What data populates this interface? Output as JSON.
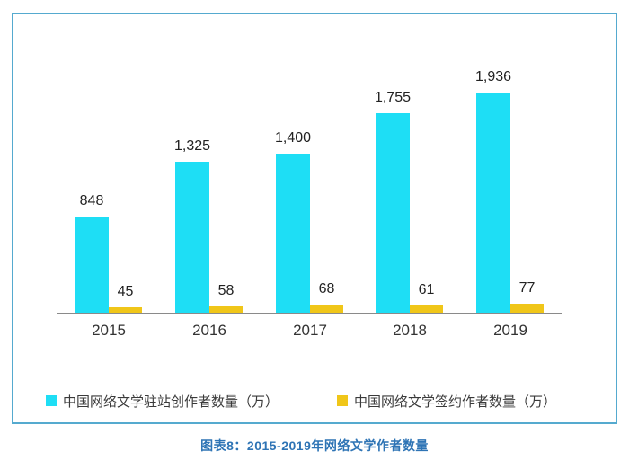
{
  "chart_data": {
    "type": "bar",
    "categories": [
      "2015",
      "2016",
      "2017",
      "2018",
      "2019"
    ],
    "series": [
      {
        "name": "中国网络文学驻站创作者数量（万）",
        "color": "#1edef5",
        "values": [
          848,
          1325,
          1400,
          1755,
          1936
        ],
        "labels": [
          "848",
          "1,325",
          "1,400",
          "1,755",
          "1,936"
        ]
      },
      {
        "name": "中国网络文学签约作者数量（万）",
        "color": "#f0c619",
        "values": [
          45,
          58,
          68,
          61,
          77
        ],
        "labels": [
          "45",
          "58",
          "68",
          "61",
          "77"
        ]
      }
    ],
    "title": "",
    "xlabel": "",
    "ylabel": "",
    "ylim": [
      0,
      1936
    ],
    "grid": false,
    "legend_position": "bottom",
    "axis_color": "#8a8a8a",
    "value_label_color": "#222222",
    "category_label_color": "#333333"
  },
  "caption": {
    "text": "图表8：2015-2019年网络文学作者数量",
    "color": "#2e74b5"
  },
  "frame": {
    "border_color": "#55aacf",
    "background": "#ffffff"
  }
}
